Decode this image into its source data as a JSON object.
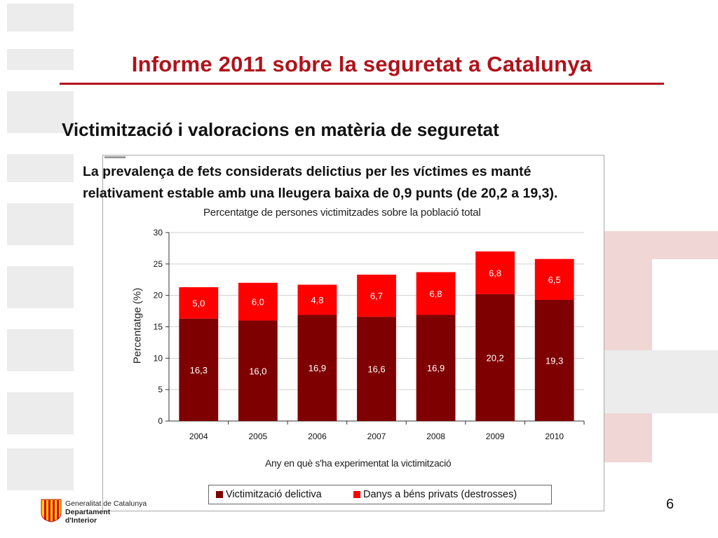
{
  "slide": {
    "title": "Informe 2011 sobre la seguretat a Catalunya",
    "subtitle": "Victimització i valoracions en matèria de seguretat",
    "intro": "La prevalença de fets considerats delictius per les víctimes es manté relativament estable amb una lleugera baixa de 0,9 punts (de 20,2  a 19,3).",
    "page_number": "6",
    "accent_color": "#b0121b"
  },
  "footer": {
    "org_line1": "Generalitat de Catalunya",
    "org_line2": "Departament",
    "org_line3": "d'Interior",
    "logo_icon": "senyera-shield-icon"
  },
  "chart_data": {
    "type": "bar",
    "stacked": true,
    "title": "Percentatge de persones victimitzades sobre la població total",
    "xlabel": "Any en què s'ha experimentat la victimització",
    "ylabel": "Percentatge (%)",
    "categories": [
      "2004",
      "2005",
      "2006",
      "2007",
      "2008",
      "2009",
      "2010"
    ],
    "ylim": [
      0,
      30
    ],
    "yticks": [
      "0",
      "5",
      "10",
      "15",
      "20",
      "25",
      "30"
    ],
    "grid": true,
    "legend_position": "bottom",
    "series": [
      {
        "name": "Victimització delictiva",
        "color": "#7f0000",
        "values": [
          16.3,
          16.0,
          16.9,
          16.6,
          16.9,
          20.2,
          19.3
        ],
        "labels": [
          "16,3",
          "16,0",
          "16,9",
          "16,6",
          "16,9",
          "20,2",
          "19,3"
        ]
      },
      {
        "name": "Danys a béns privats (destrosses)",
        "color": "#ff0000",
        "values": [
          5.0,
          6.0,
          4.8,
          6.7,
          6.8,
          6.8,
          6.5
        ],
        "labels": [
          "5,0",
          "6,0",
          "4,8",
          "6,7",
          "6,8",
          "6,8",
          "6,5"
        ]
      }
    ]
  }
}
